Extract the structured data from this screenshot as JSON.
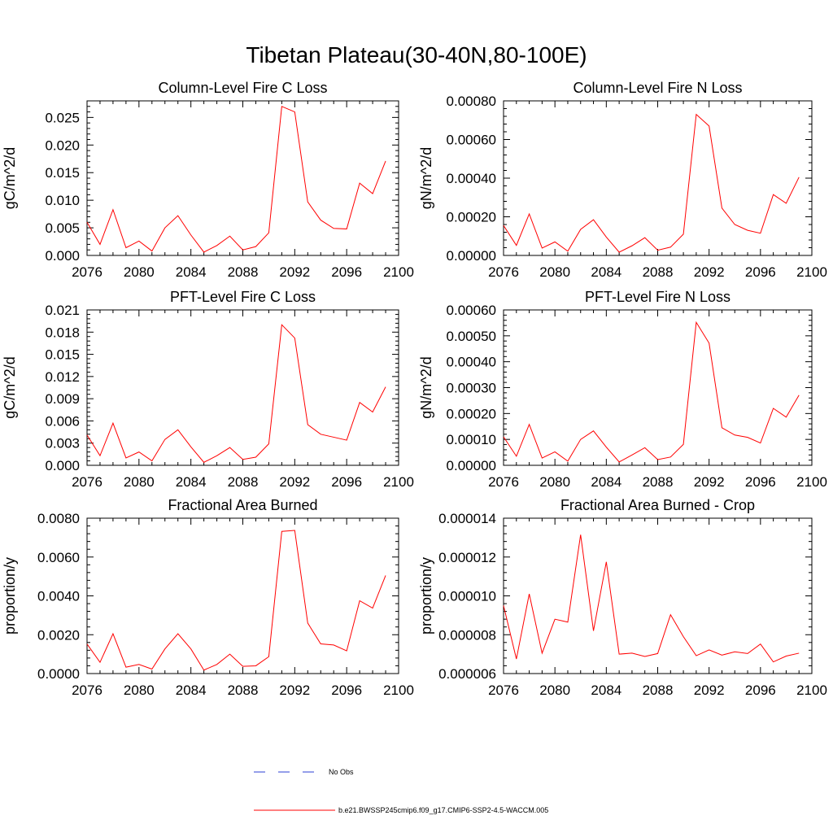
{
  "figure": {
    "title": "Tibetan Plateau(30-40N,80-100E)"
  },
  "legend": {
    "items": [
      {
        "label": "No Obs",
        "color": "#2b3fd6",
        "dash": true
      },
      {
        "label": "b.e21.BWSSP245cmip6.f09_g17.CMIP6-SSP2-4.5-WACCM.005",
        "color": "#ff0000",
        "dash": false
      }
    ]
  },
  "chart_data": [
    {
      "type": "line",
      "title": "Column-Level Fire C Loss",
      "ylabel": "gC/m^2/d",
      "xlim": [
        2076,
        2100
      ],
      "ylim": [
        0,
        0.028
      ],
      "xticks": [
        2076,
        2080,
        2084,
        2088,
        2092,
        2096,
        2100
      ],
      "xtick_labels": [
        "2076",
        "2080",
        "2084",
        "2088",
        "2092",
        "2096",
        "2100"
      ],
      "yticks": [
        0,
        0.005,
        0.01,
        0.015,
        0.02,
        0.025
      ],
      "ytick_labels": [
        "0.000",
        "0.005",
        "0.010",
        "0.015",
        "0.020",
        "0.025"
      ],
      "series": [
        {
          "color": "#ff0000",
          "x": [
            2076,
            2077,
            2078,
            2079,
            2080,
            2081,
            2082,
            2083,
            2084,
            2085,
            2086,
            2087,
            2088,
            2089,
            2090,
            2091,
            2092,
            2093,
            2094,
            2095,
            2096,
            2097,
            2098,
            2099
          ],
          "y": [
            0.006,
            0.002,
            0.0083,
            0.0014,
            0.0026,
            0.0008,
            0.005,
            0.0072,
            0.0037,
            0.0006,
            0.0018,
            0.0035,
            0.001,
            0.0016,
            0.0041,
            0.027,
            0.026,
            0.0097,
            0.0064,
            0.0049,
            0.0048,
            0.0131,
            0.0112,
            0.0171
          ]
        }
      ]
    },
    {
      "type": "line",
      "title": "Column-Level Fire N Loss",
      "ylabel": "gN/m^2/d",
      "xlim": [
        2076,
        2100
      ],
      "ylim": [
        0,
        0.0008
      ],
      "xticks": [
        2076,
        2080,
        2084,
        2088,
        2092,
        2096,
        2100
      ],
      "xtick_labels": [
        "2076",
        "2080",
        "2084",
        "2088",
        "2092",
        "2096",
        "2100"
      ],
      "yticks": [
        0,
        0.0002,
        0.0004,
        0.0006,
        0.0008
      ],
      "ytick_labels": [
        "0.00000",
        "0.00020",
        "0.00040",
        "0.00060",
        "0.00080"
      ],
      "series": [
        {
          "color": "#ff0000",
          "x": [
            2076,
            2077,
            2078,
            2079,
            2080,
            2081,
            2082,
            2083,
            2084,
            2085,
            2086,
            2087,
            2088,
            2089,
            2090,
            2091,
            2092,
            2093,
            2094,
            2095,
            2096,
            2097,
            2098,
            2099
          ],
          "y": [
            0.000155,
            5.2e-05,
            0.000215,
            3.8e-05,
            7e-05,
            2.2e-05,
            0.000135,
            0.000185,
            9.5e-05,
            1.7e-05,
            5e-05,
            9.2e-05,
            2.7e-05,
            4.3e-05,
            0.00011,
            0.00073,
            0.00067,
            0.000245,
            0.00016,
            0.00013,
            0.000115,
            0.000315,
            0.00027,
            0.000405
          ]
        }
      ]
    },
    {
      "type": "line",
      "title": "PFT-Level Fire C Loss",
      "ylabel": "gC/m^2/d",
      "xlim": [
        2076,
        2100
      ],
      "ylim": [
        0,
        0.021
      ],
      "xticks": [
        2076,
        2080,
        2084,
        2088,
        2092,
        2096,
        2100
      ],
      "xtick_labels": [
        "2076",
        "2080",
        "2084",
        "2088",
        "2092",
        "2096",
        "2100"
      ],
      "yticks": [
        0,
        0.003,
        0.006,
        0.009,
        0.012,
        0.015,
        0.018,
        0.021
      ],
      "ytick_labels": [
        "0.000",
        "0.003",
        "0.006",
        "0.009",
        "0.012",
        "0.015",
        "0.018",
        "0.021"
      ],
      "series": [
        {
          "color": "#ff0000",
          "x": [
            2076,
            2077,
            2078,
            2079,
            2080,
            2081,
            2082,
            2083,
            2084,
            2085,
            2086,
            2087,
            2088,
            2089,
            2090,
            2091,
            2092,
            2093,
            2094,
            2095,
            2096,
            2097,
            2098,
            2099
          ],
          "y": [
            0.0041,
            0.0013,
            0.0057,
            0.001,
            0.0018,
            0.0006,
            0.0035,
            0.0048,
            0.0025,
            0.0004,
            0.0013,
            0.0024,
            0.0008,
            0.0011,
            0.0029,
            0.019,
            0.0172,
            0.0055,
            0.0042,
            0.0038,
            0.0034,
            0.0085,
            0.0072,
            0.0106
          ]
        }
      ]
    },
    {
      "type": "line",
      "title": "PFT-Level Fire N Loss",
      "ylabel": "gN/m^2/d",
      "xlim": [
        2076,
        2100
      ],
      "ylim": [
        0,
        0.0006
      ],
      "xticks": [
        2076,
        2080,
        2084,
        2088,
        2092,
        2096,
        2100
      ],
      "xtick_labels": [
        "2076",
        "2080",
        "2084",
        "2088",
        "2092",
        "2096",
        "2100"
      ],
      "yticks": [
        0,
        0.0001,
        0.0002,
        0.0003,
        0.0004,
        0.0005,
        0.0006
      ],
      "ytick_labels": [
        "0.00000",
        "0.00010",
        "0.00020",
        "0.00030",
        "0.00040",
        "0.00050",
        "0.00060"
      ],
      "series": [
        {
          "color": "#ff0000",
          "x": [
            2076,
            2077,
            2078,
            2079,
            2080,
            2081,
            2082,
            2083,
            2084,
            2085,
            2086,
            2087,
            2088,
            2089,
            2090,
            2091,
            2092,
            2093,
            2094,
            2095,
            2096,
            2097,
            2098,
            2099
          ],
          "y": [
            0.00011,
            3.5e-05,
            0.000158,
            2.8e-05,
            5.2e-05,
            1.6e-05,
            0.0001,
            0.000133,
            7e-05,
            1.3e-05,
            4e-05,
            6.8e-05,
            2.2e-05,
            3.2e-05,
            8.1e-05,
            0.000552,
            0.000472,
            0.000145,
            0.000117,
            0.000108,
            8.6e-05,
            0.00022,
            0.000186,
            0.000271
          ]
        }
      ]
    },
    {
      "type": "line",
      "title": "Fractional Area Burned",
      "ylabel": "proportion/y",
      "xlim": [
        2076,
        2100
      ],
      "ylim": [
        0,
        0.008
      ],
      "xticks": [
        2076,
        2080,
        2084,
        2088,
        2092,
        2096,
        2100
      ],
      "xtick_labels": [
        "2076",
        "2080",
        "2084",
        "2088",
        "2092",
        "2096",
        "2100"
      ],
      "yticks": [
        0,
        0.002,
        0.004,
        0.006,
        0.008
      ],
      "ytick_labels": [
        "0.0000",
        "0.0020",
        "0.0040",
        "0.0060",
        "0.0080"
      ],
      "series": [
        {
          "color": "#ff0000",
          "x": [
            2076,
            2077,
            2078,
            2079,
            2080,
            2081,
            2082,
            2083,
            2084,
            2085,
            2086,
            2087,
            2088,
            2089,
            2090,
            2091,
            2092,
            2093,
            2094,
            2095,
            2096,
            2097,
            2098,
            2099
          ],
          "y": [
            0.00152,
            0.00058,
            0.00205,
            0.00033,
            0.00047,
            0.00023,
            0.00127,
            0.00205,
            0.00127,
            0.00018,
            0.00047,
            0.001,
            0.00037,
            0.0004,
            0.00087,
            0.00732,
            0.00737,
            0.0026,
            0.00153,
            0.00147,
            0.00117,
            0.00375,
            0.00337,
            0.00505
          ]
        }
      ]
    },
    {
      "type": "line",
      "title": "Fractional Area Burned - Crop",
      "ylabel": "proportion/y",
      "xlim": [
        2076,
        2100
      ],
      "ylim": [
        6e-06,
        1.4e-05
      ],
      "xticks": [
        2076,
        2080,
        2084,
        2088,
        2092,
        2096,
        2100
      ],
      "xtick_labels": [
        "2076",
        "2080",
        "2084",
        "2088",
        "2092",
        "2096",
        "2100"
      ],
      "yticks": [
        6e-06,
        8e-06,
        1e-05,
        1.2e-05,
        1.4e-05
      ],
      "ytick_labels": [
        "0.000006",
        "0.000008",
        "0.000010",
        "0.000012",
        "0.000014"
      ],
      "series": [
        {
          "color": "#ff0000",
          "x": [
            2076,
            2077,
            2078,
            2079,
            2080,
            2081,
            2082,
            2083,
            2084,
            2085,
            2086,
            2087,
            2088,
            2089,
            2090,
            2091,
            2092,
            2093,
            2094,
            2095,
            2096,
            2097,
            2098,
            2099
          ],
          "y": [
            9.5e-06,
            6.75e-06,
            1.01e-05,
            7.05e-06,
            8.8e-06,
            8.65e-06,
            1.315e-05,
            8.2e-06,
            1.175e-05,
            7e-06,
            7.05e-06,
            6.88e-06,
            7.03e-06,
            9.03e-06,
            7.9e-06,
            6.92e-06,
            7.22e-06,
            6.95e-06,
            7.12e-06,
            7.03e-06,
            7.52e-06,
            6.6e-06,
            6.9e-06,
            7.05e-06
          ]
        }
      ]
    }
  ]
}
